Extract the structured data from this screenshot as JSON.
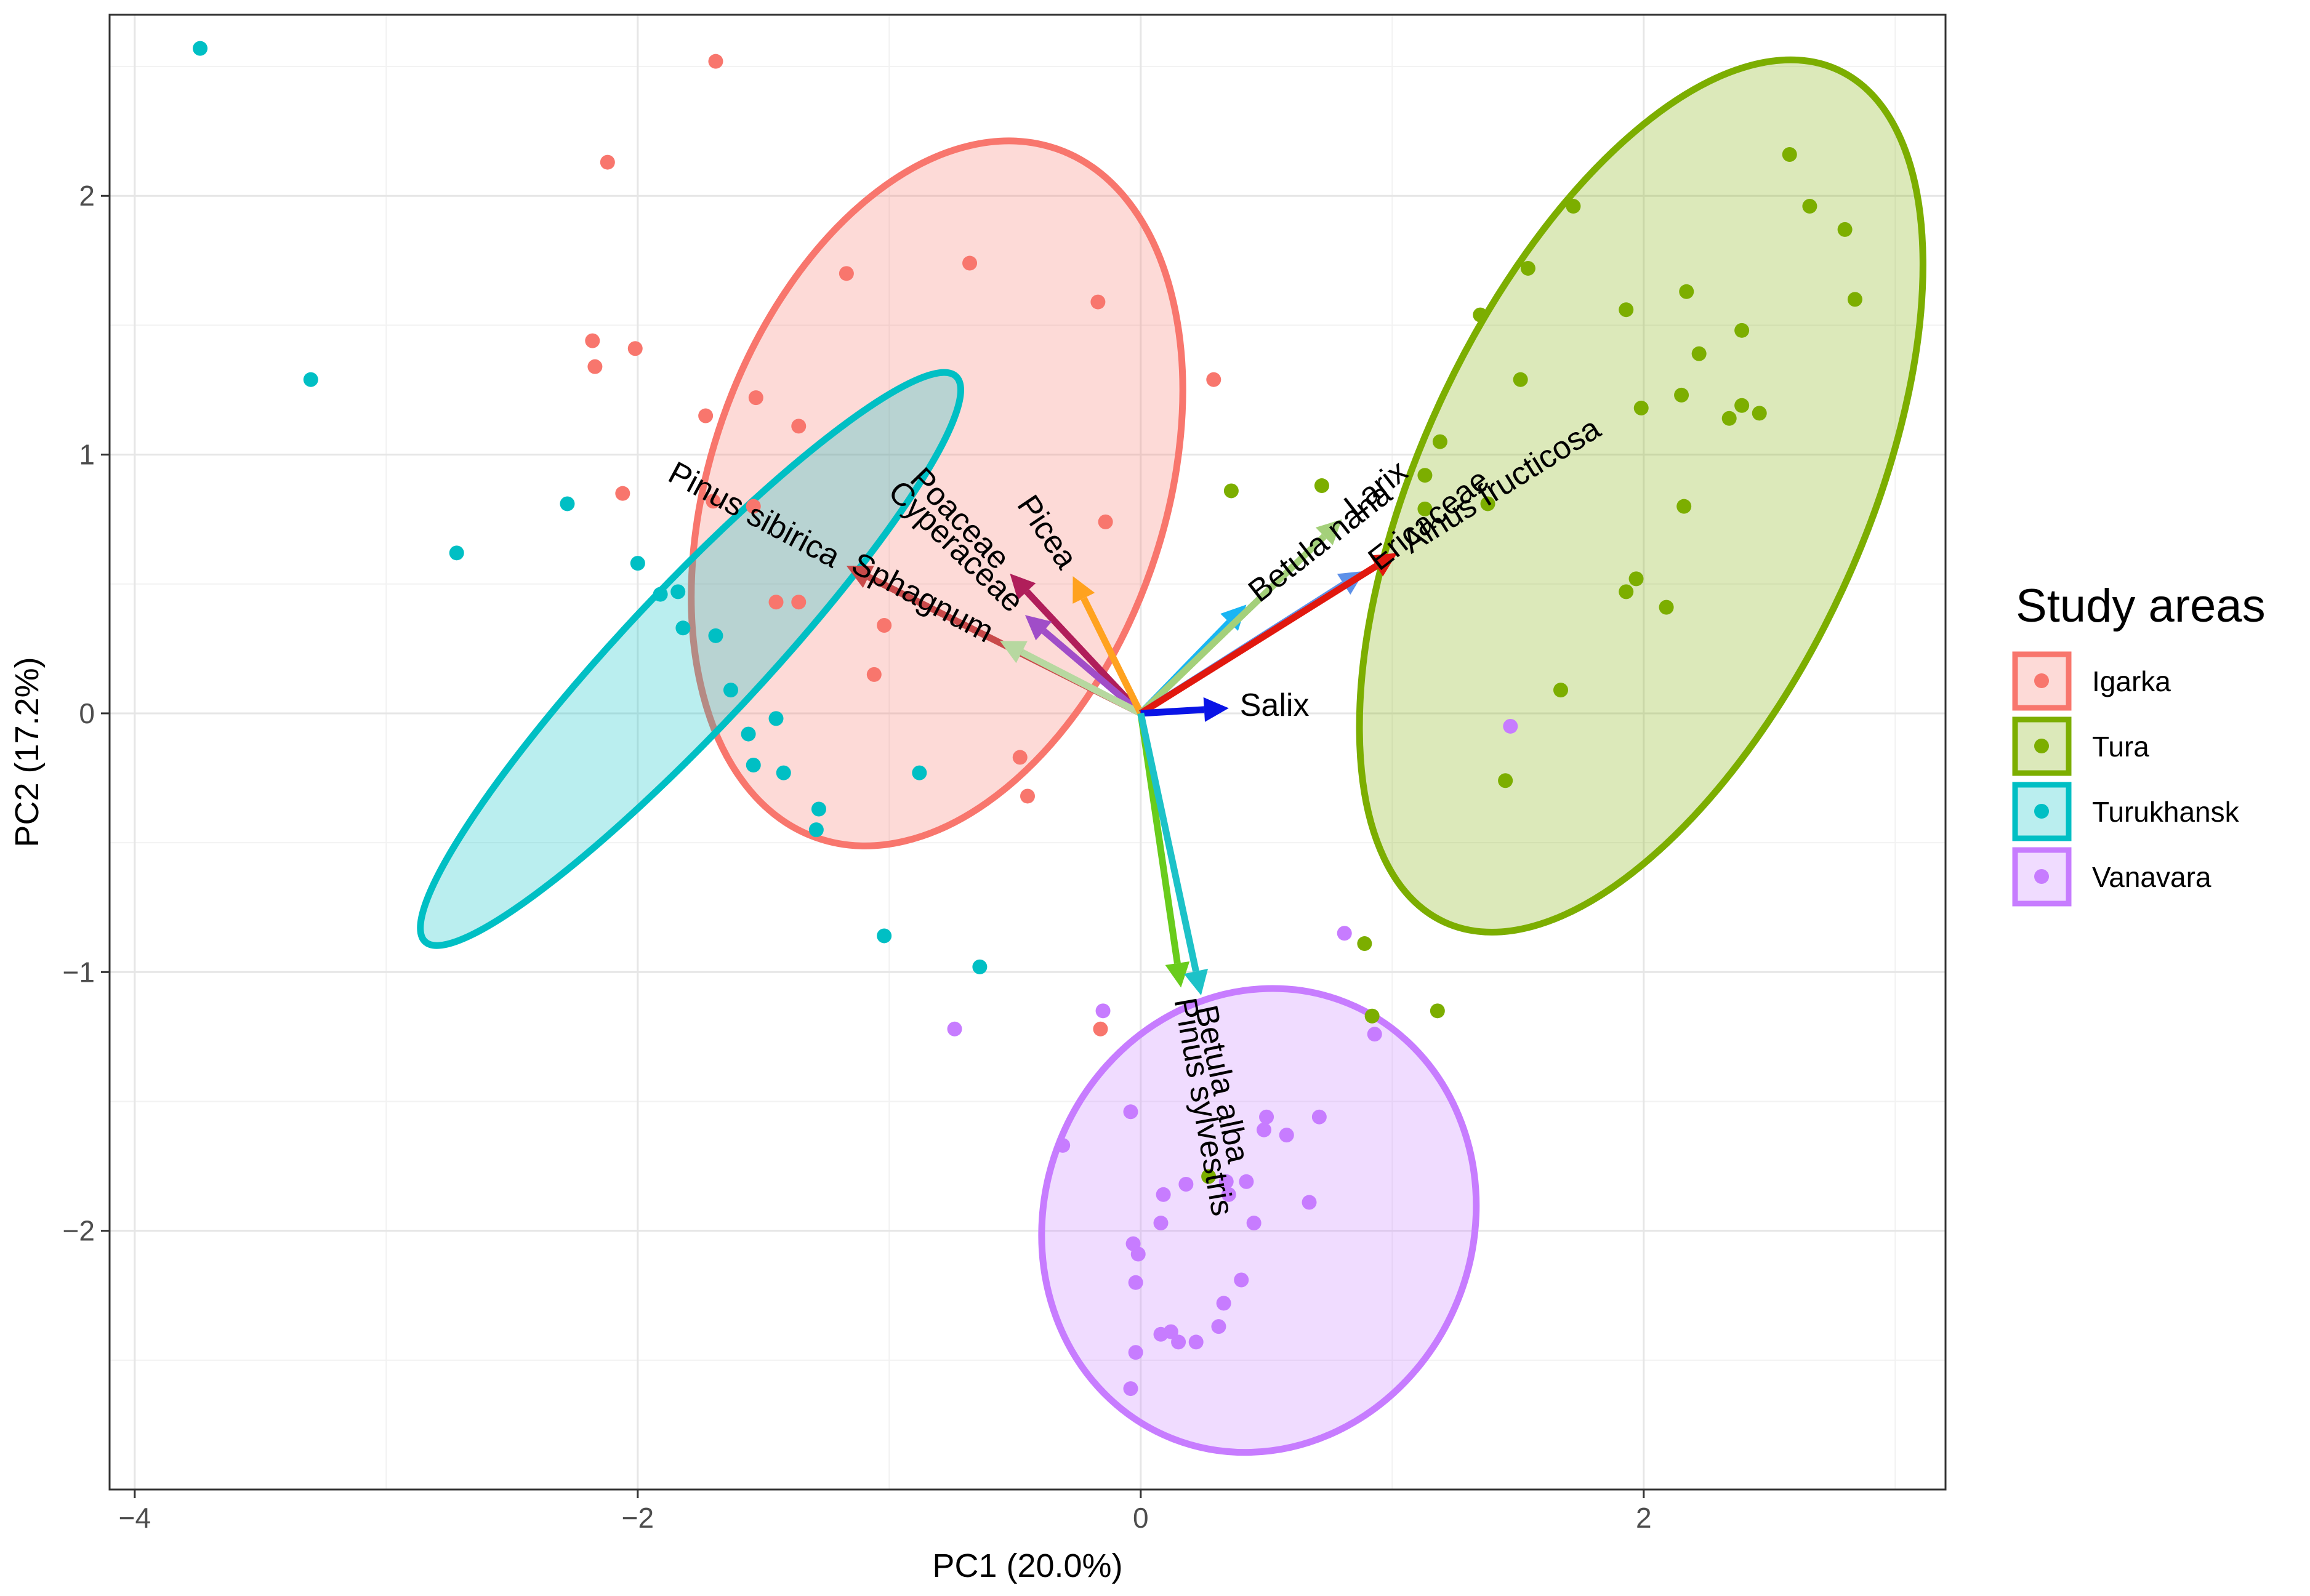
{
  "chart_data": {
    "type": "scatter",
    "subtype": "pca-biplot",
    "title": "",
    "xlabel": "PC1 (20.0%)",
    "ylabel": "PC2 (17.2%)",
    "xlim": [
      -4.1,
      3.2
    ],
    "ylim": [
      -3.0,
      2.7
    ],
    "x_ticks": [
      -4,
      -2,
      0,
      2
    ],
    "y_ticks": [
      -2,
      -1,
      0,
      1,
      2
    ],
    "x_tick_labels": [
      "−4",
      "−2",
      "0",
      "2"
    ],
    "y_tick_labels": [
      "−2",
      "−1",
      "0",
      "1",
      "2"
    ],
    "grid": true,
    "legend": {
      "title": "Study areas",
      "position": "right",
      "entries": [
        {
          "name": "Igarka",
          "color": "#F8766D"
        },
        {
          "name": "Tura",
          "color": "#7CAE00"
        },
        {
          "name": "Turukhansk",
          "color": "#00BFC4"
        },
        {
          "name": "Vanavara",
          "color": "#C77CFF"
        }
      ]
    },
    "ellipses": [
      {
        "group": "Igarka",
        "cx": -0.81,
        "cy": 0.85,
        "rx": 1.43,
        "ry": 0.89,
        "angle_deg": -70.8,
        "stroke": "#F8766D",
        "fill": "#F8766D"
      },
      {
        "group": "Tura",
        "cx": 1.99,
        "cy": 0.84,
        "rx": 1.84,
        "ry": 0.87,
        "angle_deg": -65.2,
        "stroke": "#7CAE00",
        "fill": "#7CAE00"
      },
      {
        "group": "Turukhansk",
        "cx": -1.79,
        "cy": 0.21,
        "rx": 1.52,
        "ry": 0.27,
        "angle_deg": -46.8,
        "stroke": "#00BFC4",
        "fill": "#00BFC4"
      },
      {
        "group": "Vanavara",
        "cx": 0.47,
        "cy": -1.96,
        "rx": 0.92,
        "ry": 0.84,
        "angle_deg": -68.0,
        "stroke": "#C77CFF",
        "fill": "#C77CFF"
      }
    ],
    "series": [
      {
        "name": "Igarka",
        "color": "#F8766D",
        "points": [
          [
            -1.69,
            2.52
          ],
          [
            -2.12,
            2.13
          ],
          [
            -1.17,
            1.7
          ],
          [
            -0.68,
            1.74
          ],
          [
            -0.17,
            1.59
          ],
          [
            -2.18,
            1.44
          ],
          [
            -2.01,
            1.41
          ],
          [
            -2.17,
            1.34
          ],
          [
            0.29,
            1.29
          ],
          [
            -1.53,
            1.22
          ],
          [
            -1.73,
            1.15
          ],
          [
            -1.36,
            1.11
          ],
          [
            -2.06,
            0.85
          ],
          [
            -1.7,
            0.82
          ],
          [
            -1.54,
            0.8
          ],
          [
            -0.14,
            0.74
          ],
          [
            -1.45,
            0.43
          ],
          [
            -1.36,
            0.43
          ],
          [
            -1.02,
            0.34
          ],
          [
            -1.06,
            0.15
          ],
          [
            -0.48,
            -0.17
          ],
          [
            -0.45,
            -0.32
          ],
          [
            -0.16,
            -1.22
          ]
        ]
      },
      {
        "name": "Tura",
        "color": "#7CAE00",
        "points": [
          [
            2.58,
            2.16
          ],
          [
            2.66,
            1.96
          ],
          [
            2.8,
            1.87
          ],
          [
            1.72,
            1.96
          ],
          [
            1.54,
            1.72
          ],
          [
            2.84,
            1.6
          ],
          [
            2.17,
            1.63
          ],
          [
            1.93,
            1.56
          ],
          [
            2.39,
            1.48
          ],
          [
            1.35,
            1.54
          ],
          [
            2.22,
            1.39
          ],
          [
            1.51,
            1.29
          ],
          [
            2.15,
            1.23
          ],
          [
            1.99,
            1.18
          ],
          [
            2.39,
            1.19
          ],
          [
            2.46,
            1.16
          ],
          [
            2.34,
            1.14
          ],
          [
            1.19,
            1.05
          ],
          [
            1.13,
            0.92
          ],
          [
            0.72,
            0.88
          ],
          [
            0.36,
            0.86
          ],
          [
            1.38,
            0.81
          ],
          [
            1.13,
            0.79
          ],
          [
            2.16,
            0.8
          ],
          [
            1.97,
            0.52
          ],
          [
            1.93,
            0.47
          ],
          [
            2.09,
            0.41
          ],
          [
            1.67,
            0.09
          ],
          [
            1.45,
            -0.26
          ],
          [
            0.89,
            -0.89
          ],
          [
            0.92,
            -1.17
          ],
          [
            1.18,
            -1.15
          ],
          [
            0.27,
            -1.79
          ]
        ]
      },
      {
        "name": "Turukhansk",
        "color": "#00BFC4",
        "points": [
          [
            -3.74,
            2.57
          ],
          [
            -3.3,
            1.29
          ],
          [
            -2.72,
            0.62
          ],
          [
            -2.28,
            0.81
          ],
          [
            -2.0,
            0.58
          ],
          [
            -1.91,
            0.46
          ],
          [
            -1.84,
            0.47
          ],
          [
            -1.82,
            0.33
          ],
          [
            -1.69,
            0.3
          ],
          [
            -1.63,
            0.09
          ],
          [
            -1.56,
            -0.08
          ],
          [
            -1.45,
            -0.02
          ],
          [
            -1.54,
            -0.2
          ],
          [
            -1.42,
            -0.23
          ],
          [
            -1.28,
            -0.37
          ],
          [
            -1.29,
            -0.45
          ],
          [
            -0.88,
            -0.23
          ],
          [
            -1.02,
            -0.86
          ],
          [
            -0.64,
            -0.98
          ]
        ]
      },
      {
        "name": "Vanavara",
        "color": "#C77CFF",
        "points": [
          [
            -0.74,
            -1.22
          ],
          [
            -0.15,
            -1.15
          ],
          [
            -0.31,
            -1.67
          ],
          [
            -0.04,
            -1.54
          ],
          [
            -0.03,
            -2.05
          ],
          [
            -0.01,
            -2.09
          ],
          [
            -0.02,
            -2.2
          ],
          [
            0.08,
            -1.97
          ],
          [
            0.09,
            -1.86
          ],
          [
            0.18,
            -1.82
          ],
          [
            0.34,
            -1.81
          ],
          [
            0.35,
            -1.86
          ],
          [
            0.42,
            -1.81
          ],
          [
            0.49,
            -1.61
          ],
          [
            0.58,
            -1.63
          ],
          [
            0.5,
            -1.56
          ],
          [
            0.71,
            -1.56
          ],
          [
            0.67,
            -1.89
          ],
          [
            0.45,
            -1.97
          ],
          [
            0.4,
            -2.19
          ],
          [
            0.33,
            -2.28
          ],
          [
            0.12,
            -2.39
          ],
          [
            0.08,
            -2.4
          ],
          [
            0.15,
            -2.43
          ],
          [
            0.22,
            -2.43
          ],
          [
            0.31,
            -2.37
          ],
          [
            -0.02,
            -2.47
          ],
          [
            -0.04,
            -2.61
          ],
          [
            0.81,
            -0.85
          ],
          [
            0.93,
            -1.24
          ],
          [
            1.47,
            -0.05
          ]
        ]
      }
    ],
    "loadings": [
      {
        "label": "Pinus sibirica",
        "x": -1.17,
        "y": 0.57,
        "color": "#C94A4A",
        "label_rotation": 28
      },
      {
        "label": "Poaceae",
        "x": -0.52,
        "y": 0.54,
        "color": "#B01E5A",
        "label_rotation": 46
      },
      {
        "label": "Cyperaceae",
        "x": -0.46,
        "y": 0.38,
        "color": "#A04DC8",
        "label_rotation": 44
      },
      {
        "label": "Sphagnum",
        "x": -0.56,
        "y": 0.28,
        "color": "#B7D8A0",
        "label_rotation": 28
      },
      {
        "label": "Picea",
        "x": -0.27,
        "y": 0.53,
        "color": "#FFA21F",
        "label_rotation": 56
      },
      {
        "label": "Betula nana",
        "x": 0.42,
        "y": 0.42,
        "color": "#19B5F3",
        "label_rotation": -38
      },
      {
        "label": "Larix",
        "x": 0.8,
        "y": 0.75,
        "color": "#A4D07A",
        "label_rotation": -38
      },
      {
        "label": "Ericaceae",
        "x": 0.89,
        "y": 0.55,
        "color": "#5D90E8",
        "label_rotation": -38
      },
      {
        "label": "Alnus fructicosa",
        "x": 1.02,
        "y": 0.62,
        "color": "#E1180E",
        "label_rotation": -32
      },
      {
        "label": "Salix",
        "x": 0.35,
        "y": 0.02,
        "color": "#0A14E6",
        "label_rotation": 0
      },
      {
        "label": "Pinus sylvestris",
        "x": 0.16,
        "y": -1.06,
        "color": "#69CC1C",
        "label_rotation": 80
      },
      {
        "label": "Betula alba",
        "x": 0.24,
        "y": -1.09,
        "color": "#1DC2C8",
        "label_rotation": 78
      }
    ]
  }
}
